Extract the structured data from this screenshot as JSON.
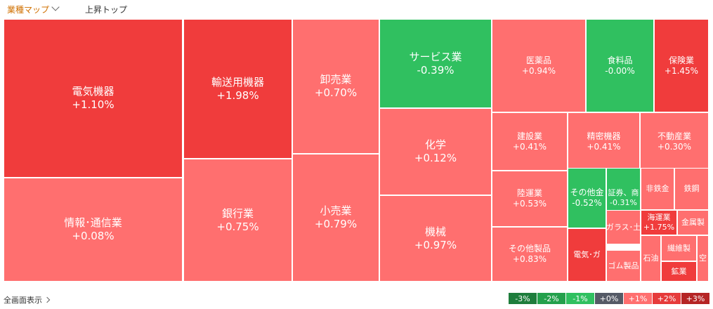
{
  "tabs": [
    {
      "label": "業種マップ",
      "active": true
    },
    {
      "label": "上昇トップ",
      "active": false
    }
  ],
  "colors": {
    "strong_up": "#f03c3c",
    "up": "#ff6f6f",
    "down": "#30c060"
  },
  "cells": [
    {
      "name": "電気機器",
      "change": "+1.10%",
      "color": "#f03c3c",
      "size": "xl"
    },
    {
      "name": "情報･通信業",
      "change": "+0.08%",
      "color": "#ff6f6f",
      "size": "xl"
    },
    {
      "name": "輸送用機器",
      "change": "+1.98%",
      "color": "#f03c3c",
      "size": "xl"
    },
    {
      "name": "銀行業",
      "change": "+0.75%",
      "color": "#ff6f6f",
      "size": "xl"
    },
    {
      "name": "卸売業",
      "change": "+0.70%",
      "color": "#ff6f6f",
      "size": "xl"
    },
    {
      "name": "小売業",
      "change": "+0.79%",
      "color": "#ff6f6f",
      "size": "xl"
    },
    {
      "name": "サービス業",
      "change": "-0.39%",
      "color": "#30c060",
      "size": "xl"
    },
    {
      "name": "化学",
      "change": "+0.12%",
      "color": "#ff6f6f",
      "size": "xl"
    },
    {
      "name": "機械",
      "change": "+0.97%",
      "color": "#ff6f6f",
      "size": "xl"
    },
    {
      "name": "医薬品",
      "change": "+0.94%",
      "color": "#ff6f6f",
      "size": "m"
    },
    {
      "name": "食料品",
      "change": "-0.00%",
      "color": "#30c060",
      "size": "m"
    },
    {
      "name": "保険業",
      "change": "+1.45%",
      "color": "#f03c3c",
      "size": "m"
    },
    {
      "name": "建設業",
      "change": "+0.41%",
      "color": "#ff6f6f",
      "size": "m"
    },
    {
      "name": "精密機器",
      "change": "+0.41%",
      "color": "#ff6f6f",
      "size": "m"
    },
    {
      "name": "不動産業",
      "change": "+0.30%",
      "color": "#ff6f6f",
      "size": "m"
    },
    {
      "name": "陸運業",
      "change": "+0.53%",
      "color": "#ff6f6f",
      "size": "m"
    },
    {
      "name": "その他製品",
      "change": "+0.83%",
      "color": "#ff6f6f",
      "size": "m"
    },
    {
      "name": "その他金",
      "change": "-0.52%",
      "color": "#30c060",
      "size": "m"
    },
    {
      "name": "証券、商",
      "change": "-0.31%",
      "color": "#30c060",
      "size": "s"
    },
    {
      "name": "非鉄金",
      "change": "",
      "color": "#ff6f6f",
      "size": "s"
    },
    {
      "name": "鉄鋼",
      "change": "",
      "color": "#ff6f6f",
      "size": "s"
    },
    {
      "name": "ガラス･土",
      "change": "",
      "color": "#ff6f6f",
      "size": "s"
    },
    {
      "name": "海運業",
      "change": "+1.75%",
      "color": "#f03c3c",
      "size": "s"
    },
    {
      "name": "金属製",
      "change": "",
      "color": "#ff6f6f",
      "size": "s"
    },
    {
      "name": "電気･ガ",
      "change": "",
      "color": "#f03c3c",
      "size": "s"
    },
    {
      "name": "ゴム製品",
      "change": "",
      "color": "#ff6f6f",
      "size": "s"
    },
    {
      "name": "石油",
      "change": "",
      "color": "#ff6f6f",
      "size": "s"
    },
    {
      "name": "繊維製",
      "change": "",
      "color": "#ff6f6f",
      "size": "s"
    },
    {
      "name": "鉱業",
      "change": "",
      "color": "#f03c3c",
      "size": "s"
    },
    {
      "name": "空",
      "change": "",
      "color": "#ff6f6f",
      "size": "s"
    }
  ],
  "footer": {
    "full_screen_label": "全画面表示"
  },
  "legend": [
    {
      "label": "-3%",
      "color": "#1e7d3c"
    },
    {
      "label": "-2%",
      "color": "#24a04c"
    },
    {
      "label": "-1%",
      "color": "#30c060"
    },
    {
      "label": "+0%",
      "color": "#555a66"
    },
    {
      "label": "+1%",
      "color": "#ff6f6f"
    },
    {
      "label": "+2%",
      "color": "#e63b3b"
    },
    {
      "label": "+3%",
      "color": "#b52525"
    }
  ]
}
